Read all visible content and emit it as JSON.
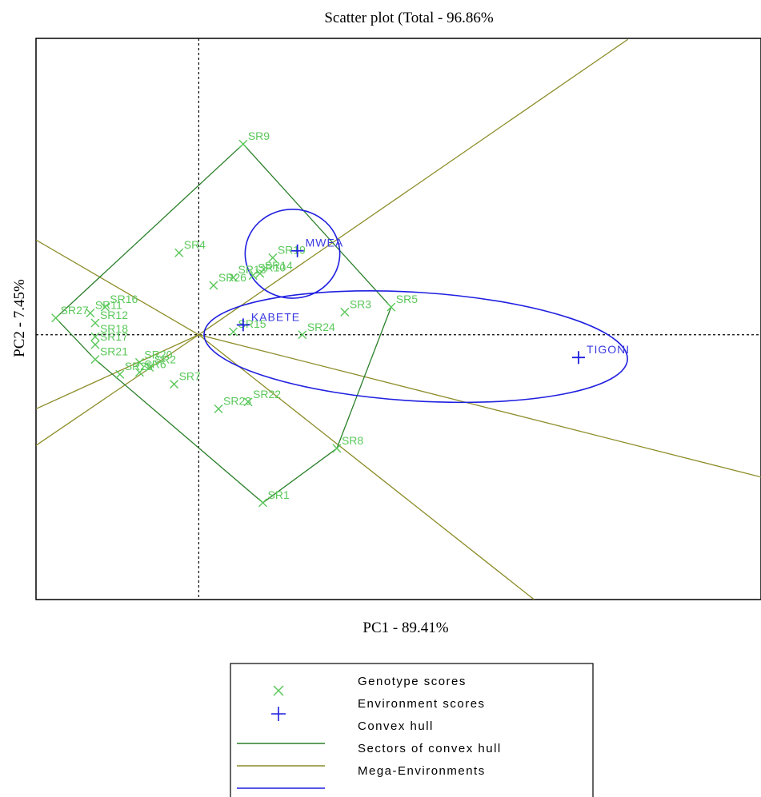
{
  "colors": {
    "genotype": "#5ac85a",
    "environment": "#1f1fe0",
    "hull": "#2a7f2a",
    "sectors": "#8c8c28",
    "mega": "#1f1fe0"
  },
  "chart_data": {
    "type": "scatter",
    "title": "Scatter plot (Total - 96.86%",
    "xlabel": "PC1 - 89.41%",
    "ylabel": "PC2 - 7.45%",
    "xlim": [
      -1.65,
      5.7
    ],
    "ylim": [
      -2.68,
      3.0
    ],
    "grid": false,
    "reference_lines": {
      "x": 0,
      "y": 0
    },
    "legend_position": "bottom",
    "genotypes": [
      {
        "name": "SR1",
        "x": 0.65,
        "y": -1.7
      },
      {
        "name": "SR2",
        "x": -0.5,
        "y": -0.33
      },
      {
        "name": "SR3",
        "x": 1.48,
        "y": 0.23
      },
      {
        "name": "SR4",
        "x": -0.2,
        "y": 0.83
      },
      {
        "name": "SR5",
        "x": 1.95,
        "y": 0.28
      },
      {
        "name": "SR6",
        "x": -0.6,
        "y": -0.38
      },
      {
        "name": "SR7",
        "x": -0.25,
        "y": -0.5
      },
      {
        "name": "SR8",
        "x": 1.4,
        "y": -1.15
      },
      {
        "name": "SR9",
        "x": 0.45,
        "y": 1.93
      },
      {
        "name": "SR10",
        "x": 0.55,
        "y": 0.6
      },
      {
        "name": "SR11",
        "x": -1.1,
        "y": 0.22
      },
      {
        "name": "SR12",
        "x": -1.05,
        "y": 0.12
      },
      {
        "name": "SR13",
        "x": 0.35,
        "y": 0.58
      },
      {
        "name": "SR14",
        "x": 0.62,
        "y": 0.62
      },
      {
        "name": "SR15",
        "x": 0.35,
        "y": 0.03
      },
      {
        "name": "SR16",
        "x": -0.95,
        "y": 0.28
      },
      {
        "name": "SR17",
        "x": -1.05,
        "y": -0.1
      },
      {
        "name": "SR18",
        "x": -1.05,
        "y": -0.02
      },
      {
        "name": "SR19",
        "x": 0.75,
        "y": 0.78
      },
      {
        "name": "SR20",
        "x": -0.6,
        "y": -0.28
      },
      {
        "name": "SR21",
        "x": -1.05,
        "y": -0.25
      },
      {
        "name": "SR22",
        "x": 0.5,
        "y": -0.68
      },
      {
        "name": "SR23",
        "x": 0.2,
        "y": -0.75
      },
      {
        "name": "SR24",
        "x": 1.05,
        "y": 0.0
      },
      {
        "name": "SR25",
        "x": -0.8,
        "y": -0.4
      },
      {
        "name": "SR26",
        "x": 0.15,
        "y": 0.5
      },
      {
        "name": "SR27",
        "x": -1.45,
        "y": 0.17
      }
    ],
    "environments": [
      {
        "name": "MWEA",
        "x": 1.0,
        "y": 0.85
      },
      {
        "name": "KABETE",
        "x": 0.45,
        "y": 0.1
      },
      {
        "name": "TIGONI",
        "x": 3.85,
        "y": -0.23
      }
    ],
    "convex_hull": [
      "SR9",
      "SR5",
      "SR8",
      "SR1",
      "SR21",
      "SR27"
    ],
    "sector_lines": [
      {
        "x": 4.35,
        "y": 2.99
      },
      {
        "x": 5.7,
        "y": -1.44
      },
      {
        "x": 3.4,
        "y": -2.68
      },
      {
        "x": -1.65,
        "y": 0.96
      },
      {
        "x": -1.65,
        "y": -0.75
      },
      {
        "x": -1.65,
        "y": -1.12
      }
    ],
    "mega_environments": [
      {
        "cx": 0.95,
        "cy": 0.82,
        "rx": 0.48,
        "ry": 0.45
      },
      {
        "cx": 2.2,
        "cy": -0.12,
        "rx": 2.15,
        "ry": 0.55,
        "rotate": 3.5
      }
    ],
    "legend": [
      {
        "symbol": "cross",
        "label": "Genotype scores"
      },
      {
        "symbol": "plus",
        "label": "Environment scores"
      },
      {
        "symbol": "hull-line",
        "label": "Convex hull"
      },
      {
        "symbol": "sector-line",
        "label": "Sectors of convex hull"
      },
      {
        "symbol": "mega-line",
        "label": "Mega-Environments"
      }
    ]
  }
}
